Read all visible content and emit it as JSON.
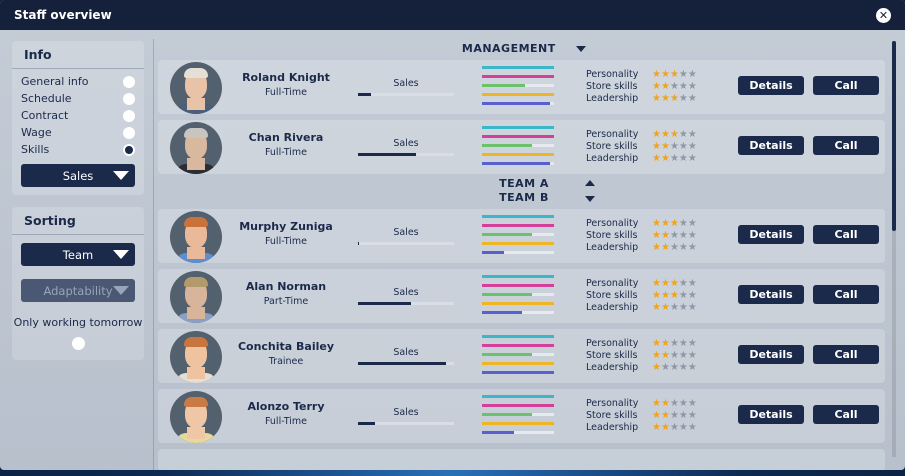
{
  "window": {
    "title": "Staff overview",
    "close_icon": "close-icon"
  },
  "info": {
    "title": "Info",
    "options": [
      {
        "label": "General info",
        "selected": false
      },
      {
        "label": "Schedule",
        "selected": false
      },
      {
        "label": "Contract",
        "selected": false
      },
      {
        "label": "Wage",
        "selected": false
      },
      {
        "label": "Skills",
        "selected": true
      }
    ],
    "skill_select": "Sales"
  },
  "sorting": {
    "title": "Sorting",
    "primary": "Team",
    "secondary": "Adaptability",
    "only_working_label": "Only working tomorrow"
  },
  "groups": {
    "management": "MANAGEMENT",
    "team_a": "TEAM A",
    "team_b": "TEAM B"
  },
  "attribute_labels": [
    "Personality",
    "Store skills",
    "Leadership"
  ],
  "buttons": {
    "details": "Details",
    "call": "Call"
  },
  "bar_colors": [
    "#3bb7c9",
    "#d43f9a",
    "#6cc26a",
    "#eeb526",
    "#5a5fd0"
  ],
  "staff": [
    {
      "name": "Roland Knight",
      "contract": "Full-Time",
      "skill": "Sales",
      "skill_level": 0.14,
      "bars": [
        1.0,
        1.0,
        0.6,
        1.0,
        0.95
      ],
      "stars": [
        3,
        2,
        3
      ],
      "look": {
        "skin": "#e8c3a8",
        "hair": "#e4e0d8",
        "shirt": "#4a5f7a"
      }
    },
    {
      "name": "Chan Rivera",
      "contract": "Full-Time",
      "skill": "Sales",
      "skill_level": 0.6,
      "bars": [
        1.0,
        1.0,
        0.7,
        1.0,
        0.95
      ],
      "stars": [
        2.5,
        2,
        2
      ],
      "look": {
        "skin": "#d9b8a0",
        "hair": "#c8c5c0",
        "shirt": "#2a2d33"
      }
    },
    {
      "name": "Murphy Zuniga",
      "contract": "Full-Time",
      "skill": "Sales",
      "skill_level": 0.01,
      "bars": [
        1.0,
        1.0,
        0.7,
        1.0,
        0.3
      ],
      "stars": [
        3,
        2,
        2
      ],
      "look": {
        "skin": "#eab99a",
        "hair": "#c9723a",
        "shirt": "#5b8fcf"
      }
    },
    {
      "name": "Alan Norman",
      "contract": "Part-Time",
      "skill": "Sales",
      "skill_level": 0.55,
      "bars": [
        1.0,
        1.0,
        0.7,
        1.0,
        0.55
      ],
      "stars": [
        3,
        2.5,
        2
      ],
      "look": {
        "skin": "#d8b49a",
        "hair": "#b39a6a",
        "shirt": "#8a9fc4"
      }
    },
    {
      "name": "Conchita Bailey",
      "contract": "Trainee",
      "skill": "Sales",
      "skill_level": 0.92,
      "bars": [
        1.0,
        1.0,
        0.7,
        1.0,
        1.0
      ],
      "stars": [
        2,
        2,
        1
      ],
      "look": {
        "skin": "#efc2a0",
        "hair": "#c8763e",
        "shirt": "#e3dfd6"
      }
    },
    {
      "name": "Alonzo Terry",
      "contract": "Full-Time",
      "skill": "Sales",
      "skill_level": 0.18,
      "bars": [
        1.0,
        1.0,
        0.7,
        1.0,
        0.45
      ],
      "stars": [
        2,
        1.5,
        2
      ],
      "look": {
        "skin": "#f0c7a6",
        "hair": "#c97a45",
        "shirt": "#e7d99a"
      }
    }
  ]
}
